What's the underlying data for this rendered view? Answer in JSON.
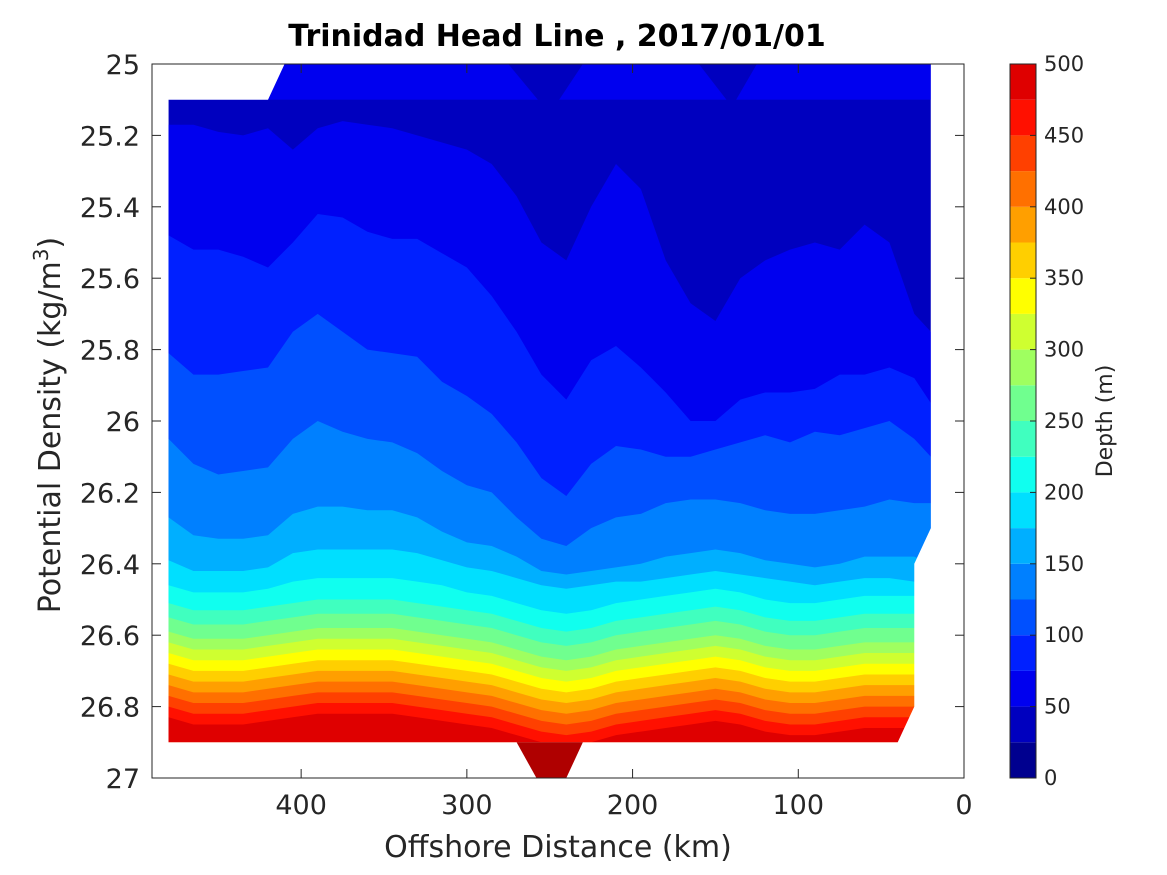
{
  "chart_data": {
    "type": "heatmap",
    "subtype": "filled-contour",
    "title": "Trinidad Head Line , 2017/01/01",
    "xlabel": "Offshore Distance (km)",
    "ylabel_main": "Potential Density (kg/m",
    "ylabel_sup": "3",
    "ylabel_close": ")",
    "colorbar_label": "Depth (m)",
    "xlim": [
      490,
      0
    ],
    "x_reversed": true,
    "ylim": [
      25,
      27
    ],
    "y_reversed": true,
    "x_ticks": [
      400,
      300,
      200,
      100,
      0
    ],
    "y_ticks": [
      25,
      25.2,
      25.4,
      25.6,
      25.8,
      26,
      26.2,
      26.4,
      26.6,
      26.8,
      27
    ],
    "y_tick_labels": [
      "25",
      "25.2",
      "25.4",
      "25.6",
      "25.8",
      "26",
      "26.2",
      "26.4",
      "26.6",
      "26.8",
      "27"
    ],
    "colorbar_range": [
      0,
      500
    ],
    "colorbar_ticks": [
      0,
      50,
      100,
      150,
      200,
      250,
      300,
      350,
      400,
      450,
      500
    ],
    "contour_levels": [
      0,
      25,
      50,
      75,
      100,
      125,
      150,
      175,
      200,
      225,
      250,
      275,
      300,
      325,
      350,
      375,
      400,
      425,
      450,
      475,
      500
    ],
    "colorscale": "jet",
    "colors": [
      "#00008f",
      "#0000bf",
      "#0000ef",
      "#0020ff",
      "#0050ff",
      "#0080ff",
      "#00afff",
      "#00dfff",
      "#10ffef",
      "#40ffbf",
      "#70ff8f",
      "#9fff60",
      "#cfff30",
      "#ffff00",
      "#ffcf00",
      "#ff9f00",
      "#ff7000",
      "#ff4000",
      "#ff1000",
      "#df0000",
      "#af0000"
    ],
    "x_stations": [
      480,
      465,
      450,
      435,
      420,
      405,
      390,
      375,
      360,
      345,
      330,
      315,
      300,
      285,
      270,
      255,
      240,
      225,
      210,
      195,
      180,
      165,
      150,
      135,
      120,
      105,
      90,
      75,
      60,
      45,
      30,
      20
    ],
    "isopycnal_depths": [
      {
        "level": 25,
        "y": [
          25.17,
          25.17,
          25.19,
          25.2,
          25.18,
          25.24,
          25.18,
          25.16,
          25.17,
          25.18,
          25.2,
          25.22,
          25.24,
          25.28,
          25.37,
          25.5,
          25.55,
          25.4,
          25.28,
          25.35,
          25.55,
          25.67,
          25.72,
          25.6,
          25.55,
          25.52,
          25.5,
          25.52,
          25.45,
          25.5,
          25.7,
          25.75
        ]
      },
      {
        "level": 50,
        "y": [
          25.48,
          25.52,
          25.52,
          25.54,
          25.57,
          25.5,
          25.42,
          25.43,
          25.47,
          25.49,
          25.49,
          25.53,
          25.57,
          25.65,
          25.75,
          25.87,
          25.94,
          25.83,
          25.79,
          25.85,
          25.92,
          26,
          26.0,
          25.94,
          25.92,
          25.92,
          25.91,
          25.87,
          25.87,
          25.85,
          25.88,
          25.95
        ]
      },
      {
        "level": 75,
        "y": [
          25.81,
          25.87,
          25.87,
          25.86,
          25.85,
          25.75,
          25.7,
          25.75,
          25.8,
          25.81,
          25.82,
          25.89,
          25.93,
          25.98,
          26.06,
          26.16,
          26.21,
          26.12,
          26.07,
          26.08,
          26.1,
          26.1,
          26.08,
          26.06,
          26.04,
          26.06,
          26.03,
          26.04,
          26.02,
          26.0,
          26.05,
          26.1
        ]
      },
      {
        "level": 100,
        "y": [
          26.05,
          26.12,
          26.15,
          26.14,
          26.13,
          26.05,
          26.0,
          26.03,
          26.05,
          26.06,
          26.09,
          26.14,
          26.18,
          26.2,
          26.27,
          26.33,
          26.35,
          26.3,
          26.27,
          26.26,
          26.23,
          26.22,
          26.22,
          26.23,
          26.25,
          26.26,
          26.26,
          26.25,
          26.24,
          26.22,
          26.23,
          26.23
        ]
      },
      {
        "level": 125,
        "y": [
          26.27,
          26.32,
          26.33,
          26.33,
          26.32,
          26.26,
          26.24,
          26.24,
          26.25,
          26.25,
          26.27,
          26.31,
          26.34,
          26.35,
          26.38,
          26.42,
          26.43,
          26.42,
          26.41,
          26.4,
          26.38,
          26.37,
          26.36,
          26.37,
          26.39,
          26.4,
          26.41,
          26.4,
          26.38,
          26.38,
          26.38,
          26.4
        ]
      },
      {
        "level": 150,
        "y": [
          26.39,
          26.42,
          26.42,
          26.42,
          26.41,
          26.37,
          26.36,
          26.36,
          26.36,
          26.36,
          26.37,
          26.39,
          26.41,
          26.42,
          26.44,
          26.46,
          26.47,
          26.46,
          26.45,
          26.45,
          26.44,
          26.43,
          26.42,
          26.43,
          26.44,
          26.45,
          26.46,
          26.45,
          26.44,
          26.44,
          26.45,
          26.47
        ]
      },
      {
        "level": 175,
        "y": [
          26.46,
          26.48,
          26.48,
          26.48,
          26.47,
          26.45,
          26.44,
          26.44,
          26.44,
          26.44,
          26.45,
          26.46,
          26.48,
          26.49,
          26.51,
          26.53,
          26.54,
          26.53,
          26.51,
          26.5,
          26.49,
          26.48,
          26.47,
          26.48,
          26.5,
          26.51,
          26.51,
          26.5,
          26.49,
          26.49,
          26.49,
          26.5
        ]
      },
      {
        "level": 200,
        "y": [
          26.51,
          26.53,
          26.53,
          26.53,
          26.52,
          26.51,
          26.5,
          26.5,
          26.5,
          26.5,
          26.51,
          26.52,
          26.53,
          26.54,
          26.56,
          26.58,
          26.59,
          26.58,
          26.56,
          26.55,
          26.54,
          26.53,
          26.52,
          26.53,
          26.55,
          26.56,
          26.56,
          26.55,
          26.54,
          26.54,
          26.54,
          26.55
        ]
      },
      {
        "level": 225,
        "y": [
          26.55,
          26.57,
          26.57,
          26.57,
          26.56,
          26.55,
          26.54,
          26.54,
          26.54,
          26.54,
          26.55,
          26.56,
          26.57,
          26.58,
          26.6,
          26.62,
          26.63,
          26.62,
          26.6,
          26.59,
          26.58,
          26.57,
          26.56,
          26.57,
          26.59,
          26.6,
          26.6,
          26.59,
          26.58,
          26.58,
          26.58,
          26.59
        ]
      },
      {
        "level": 250,
        "y": [
          26.59,
          26.61,
          26.61,
          26.61,
          26.6,
          26.59,
          26.58,
          26.58,
          26.58,
          26.58,
          26.59,
          26.6,
          26.61,
          26.62,
          26.64,
          26.66,
          26.67,
          26.66,
          26.64,
          26.63,
          26.62,
          26.61,
          26.6,
          26.61,
          26.63,
          26.64,
          26.64,
          26.63,
          26.62,
          26.62,
          26.62,
          26.63
        ]
      },
      {
        "level": 275,
        "y": [
          26.62,
          26.64,
          26.64,
          26.64,
          26.63,
          26.62,
          26.61,
          26.61,
          26.61,
          26.61,
          26.62,
          26.63,
          26.64,
          26.65,
          26.67,
          26.69,
          26.7,
          26.69,
          26.67,
          26.66,
          26.65,
          26.64,
          26.63,
          26.64,
          26.66,
          26.67,
          26.67,
          26.66,
          26.65,
          26.65,
          26.65,
          26.66
        ]
      },
      {
        "level": 300,
        "y": [
          26.65,
          26.67,
          26.67,
          26.67,
          26.66,
          26.65,
          26.64,
          26.64,
          26.64,
          26.64,
          26.65,
          26.66,
          26.67,
          26.68,
          26.7,
          26.72,
          26.73,
          26.72,
          26.7,
          26.69,
          26.68,
          26.67,
          26.66,
          26.67,
          26.69,
          26.7,
          26.7,
          26.69,
          26.68,
          26.68,
          26.68,
          26.69
        ]
      },
      {
        "level": 325,
        "y": [
          26.68,
          26.7,
          26.7,
          26.7,
          26.69,
          26.68,
          26.67,
          26.67,
          26.67,
          26.67,
          26.68,
          26.69,
          26.7,
          26.71,
          26.73,
          26.75,
          26.76,
          26.75,
          26.73,
          26.72,
          26.71,
          26.7,
          26.69,
          26.7,
          26.72,
          26.73,
          26.73,
          26.72,
          26.71,
          26.71,
          26.71,
          26.72
        ]
      },
      {
        "level": 350,
        "y": [
          26.71,
          26.73,
          26.73,
          26.73,
          26.72,
          26.71,
          26.7,
          26.7,
          26.7,
          26.7,
          26.71,
          26.72,
          26.73,
          26.74,
          26.76,
          26.78,
          26.79,
          26.78,
          26.76,
          26.75,
          26.74,
          26.73,
          26.72,
          26.73,
          26.75,
          26.76,
          26.76,
          26.75,
          26.74,
          26.74,
          26.74,
          26.75
        ]
      },
      {
        "level": 375,
        "y": [
          26.74,
          26.76,
          26.76,
          26.76,
          26.75,
          26.74,
          26.73,
          26.73,
          26.73,
          26.73,
          26.74,
          26.75,
          26.76,
          26.77,
          26.79,
          26.81,
          26.82,
          26.81,
          26.79,
          26.78,
          26.77,
          26.76,
          26.75,
          26.76,
          26.78,
          26.79,
          26.79,
          26.78,
          26.77,
          26.77,
          26.77,
          26.78
        ]
      },
      {
        "level": 400,
        "y": [
          26.77,
          26.79,
          26.79,
          26.79,
          26.78,
          26.77,
          26.76,
          26.76,
          26.76,
          26.76,
          26.77,
          26.78,
          26.79,
          26.8,
          26.82,
          26.84,
          26.85,
          26.84,
          26.82,
          26.81,
          26.8,
          26.79,
          26.78,
          26.79,
          26.81,
          26.82,
          26.82,
          26.81,
          26.8,
          26.8,
          26.8,
          26.81
        ]
      },
      {
        "level": 425,
        "y": [
          26.8,
          26.82,
          26.82,
          26.82,
          26.81,
          26.8,
          26.79,
          26.79,
          26.79,
          26.79,
          26.8,
          26.81,
          26.82,
          26.83,
          26.85,
          26.87,
          26.88,
          26.87,
          26.85,
          26.84,
          26.83,
          26.82,
          26.81,
          26.82,
          26.84,
          26.85,
          26.85,
          26.84,
          26.83,
          26.83,
          26.83,
          26.84
        ]
      },
      {
        "level": 450,
        "y": [
          26.83,
          26.85,
          26.85,
          26.85,
          26.84,
          26.83,
          26.82,
          26.82,
          26.82,
          26.82,
          26.83,
          26.84,
          26.85,
          26.86,
          26.88,
          26.9,
          26.91,
          26.9,
          26.88,
          26.87,
          26.86,
          26.85,
          26.84,
          26.85,
          26.87,
          26.88,
          26.88,
          26.87,
          26.86,
          26.86,
          26.86,
          26.87
        ]
      }
    ]
  }
}
